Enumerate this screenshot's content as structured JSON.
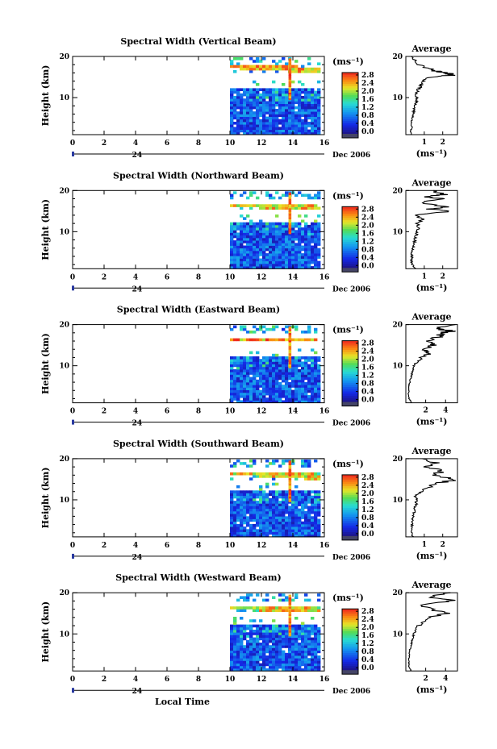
{
  "chart_data": [
    {
      "type": "heatmap",
      "title": "Spectral Width (Vertical Beam)",
      "ylabel": "Height (km)",
      "xlim": [
        0,
        16
      ],
      "ylim": [
        1,
        20
      ],
      "x_ticks": [
        "0",
        "2",
        "4",
        "6",
        "8",
        "10",
        "12",
        "14",
        "16"
      ],
      "y_ticks": [
        "10",
        "20"
      ],
      "date_day": "24",
      "date_label": "Dec 2006",
      "colorbar": {
        "unit": "(ms⁻¹)",
        "ticks": [
          "0.0",
          "0.4",
          "0.8",
          "1.2",
          "1.6",
          "2.0",
          "2.4",
          "2.8"
        ]
      },
      "average": {
        "title": "Average",
        "xlabel": "(ms⁻¹)",
        "x_ticks": [
          "1",
          "2"
        ],
        "xlim": [
          0,
          2.8
        ],
        "y_ticks": [
          "10",
          "20"
        ],
        "profile": [
          [
            1,
            0.3
          ],
          [
            2,
            0.25
          ],
          [
            3,
            0.35
          ],
          [
            4,
            0.3
          ],
          [
            5,
            0.35
          ],
          [
            6,
            0.4
          ],
          [
            7,
            0.45
          ],
          [
            8,
            0.5
          ],
          [
            9,
            0.55
          ],
          [
            10,
            0.6
          ],
          [
            11,
            0.55
          ],
          [
            12,
            0.7
          ],
          [
            13,
            0.8
          ],
          [
            14,
            0.95
          ],
          [
            15,
            1.4
          ],
          [
            15.5,
            2.6
          ],
          [
            16,
            2.2
          ],
          [
            16.5,
            1.6
          ],
          [
            17,
            1.3
          ],
          [
            18,
            0.7
          ],
          [
            19,
            0.5
          ],
          [
            20,
            0.3
          ]
        ]
      },
      "data_extent": {
        "start_hour": 10,
        "end_hour": 15.6
      },
      "bright_layer": {
        "start_height": 15.5,
        "end_height": 17.5,
        "value": 2.6
      },
      "vertical_spike": {
        "time": 13.8,
        "value": 2.8
      }
    },
    {
      "type": "heatmap",
      "title": "Spectral Width (Northward Beam)",
      "ylabel": "Height (km)",
      "xlim": [
        0,
        16
      ],
      "ylim": [
        1,
        20
      ],
      "x_ticks": [
        "0",
        "2",
        "4",
        "6",
        "8",
        "10",
        "12",
        "14",
        "16"
      ],
      "y_ticks": [
        "10",
        "20"
      ],
      "date_day": "24",
      "date_label": "Dec 2006",
      "colorbar": {
        "unit": "(ms⁻¹)",
        "ticks": [
          "0.0",
          "0.4",
          "0.8",
          "1.2",
          "1.6",
          "2.0",
          "2.4",
          "2.8"
        ]
      },
      "average": {
        "title": "Average",
        "xlabel": "(ms⁻¹)",
        "x_ticks": [
          "1",
          "2"
        ],
        "xlim": [
          0,
          2.8
        ],
        "y_ticks": [
          "10",
          "20"
        ],
        "profile": [
          [
            1,
            0.5
          ],
          [
            2,
            0.35
          ],
          [
            3,
            0.3
          ],
          [
            4,
            0.35
          ],
          [
            5,
            0.3
          ],
          [
            6,
            0.4
          ],
          [
            7,
            0.45
          ],
          [
            8,
            0.5
          ],
          [
            9,
            0.55
          ],
          [
            10,
            0.6
          ],
          [
            11,
            0.7
          ],
          [
            12,
            0.6
          ],
          [
            13,
            0.9
          ],
          [
            14,
            0.5
          ],
          [
            15,
            2.6
          ],
          [
            15.5,
            1.2
          ],
          [
            16,
            2.2
          ],
          [
            17,
            0.8
          ],
          [
            18,
            1.9
          ],
          [
            18.5,
            1.0
          ],
          [
            19,
            2.0
          ],
          [
            20,
            1.5
          ]
        ]
      },
      "data_extent": {
        "start_hour": 10,
        "end_hour": 15.6
      },
      "bright_layer": {
        "start_height": 15,
        "end_height": 16.5,
        "value": 2.5
      },
      "vertical_spike": {
        "time": 13.8,
        "value": 2.8
      }
    },
    {
      "type": "heatmap",
      "title": "Spectral Width (Eastward Beam)",
      "ylabel": "Height (km)",
      "xlim": [
        0,
        16
      ],
      "ylim": [
        1,
        20
      ],
      "x_ticks": [
        "0",
        "2",
        "4",
        "6",
        "8",
        "10",
        "12",
        "14",
        "16"
      ],
      "y_ticks": [
        "10",
        "20"
      ],
      "date_day": "24",
      "date_label": "Dec 2006",
      "colorbar": {
        "unit": "(ms⁻¹)",
        "ticks": [
          "0.0",
          "0.4",
          "0.8",
          "1.2",
          "1.6",
          "2.0",
          "2.4",
          "2.8"
        ]
      },
      "average": {
        "title": "Average",
        "xlabel": "(ms⁻¹)",
        "x_ticks": [
          "2",
          "4"
        ],
        "xlim": [
          0,
          5.2
        ],
        "y_ticks": [
          "10",
          "20"
        ],
        "profile": [
          [
            1,
            0.6
          ],
          [
            2,
            0.3
          ],
          [
            3,
            0.25
          ],
          [
            4,
            0.3
          ],
          [
            5,
            0.3
          ],
          [
            6,
            0.4
          ],
          [
            7,
            0.5
          ],
          [
            8,
            0.6
          ],
          [
            9,
            0.7
          ],
          [
            10,
            0.8
          ],
          [
            11,
            1.2
          ],
          [
            12,
            1.6
          ],
          [
            13,
            2.4
          ],
          [
            14,
            1.8
          ],
          [
            15,
            2.8
          ],
          [
            16,
            2.2
          ],
          [
            17,
            3.3
          ],
          [
            18,
            3.8
          ],
          [
            18.5,
            4.6
          ],
          [
            19,
            2.9
          ],
          [
            20,
            5.0
          ]
        ]
      },
      "data_extent": {
        "start_hour": 10,
        "end_hour": 15.6
      },
      "bright_layer": {
        "start_height": 15.5,
        "end_height": 16.5,
        "value": 2.7
      },
      "vertical_spike": {
        "time": 13.8,
        "value": 2.8
      }
    },
    {
      "type": "heatmap",
      "title": "Spectral Width (Southward Beam)",
      "ylabel": "Height (km)",
      "xlim": [
        0,
        16
      ],
      "ylim": [
        1,
        20
      ],
      "x_ticks": [
        "0",
        "2",
        "4",
        "6",
        "8",
        "10",
        "12",
        "14",
        "16"
      ],
      "y_ticks": [
        "10",
        "20"
      ],
      "date_day": "24",
      "date_label": "Dec 2006",
      "colorbar": {
        "unit": "(ms⁻¹)",
        "ticks": [
          "0.0",
          "0.4",
          "0.8",
          "1.2",
          "1.6",
          "2.0",
          "2.4",
          "2.8"
        ]
      },
      "average": {
        "title": "Average",
        "xlabel": "(ms⁻¹)",
        "x_ticks": [
          "1",
          "2"
        ],
        "xlim": [
          0,
          2.8
        ],
        "y_ticks": [
          "10",
          "20"
        ],
        "profile": [
          [
            1,
            0.4
          ],
          [
            2,
            0.3
          ],
          [
            3,
            0.3
          ],
          [
            4,
            0.35
          ],
          [
            5,
            0.35
          ],
          [
            6,
            0.4
          ],
          [
            7,
            0.45
          ],
          [
            8,
            0.5
          ],
          [
            9,
            0.55
          ],
          [
            10,
            0.6
          ],
          [
            11,
            0.5
          ],
          [
            12,
            0.8
          ],
          [
            13,
            1.2
          ],
          [
            14,
            1.7
          ],
          [
            15,
            2.7
          ],
          [
            16,
            1.5
          ],
          [
            17,
            2.0
          ],
          [
            18,
            1.1
          ],
          [
            19,
            1.6
          ],
          [
            20,
            0.9
          ]
        ]
      },
      "data_extent": {
        "start_hour": 10,
        "end_hour": 15.6
      },
      "bright_layer": {
        "start_height": 14.5,
        "end_height": 16.5,
        "value": 2.5
      },
      "vertical_spike": {
        "time": 13.8,
        "value": 2.8
      }
    },
    {
      "type": "heatmap",
      "title": "Spectral Width (Westward Beam)",
      "ylabel": "Height (km)",
      "xlabel": "Local Time",
      "xlim": [
        0,
        16
      ],
      "ylim": [
        1,
        20
      ],
      "x_ticks": [
        "0",
        "2",
        "4",
        "6",
        "8",
        "10",
        "12",
        "14",
        "16"
      ],
      "y_ticks": [
        "10",
        "20"
      ],
      "date_day": "24",
      "date_label": "Dec 2006",
      "colorbar": {
        "unit": "(ms⁻¹)",
        "ticks": [
          "0.0",
          "0.4",
          "0.8",
          "1.2",
          "1.6",
          "2.0",
          "2.4",
          "2.8"
        ]
      },
      "average": {
        "title": "Average",
        "xlabel": "(ms⁻¹)",
        "x_ticks": [
          "2",
          "4"
        ],
        "xlim": [
          0,
          5.2
        ],
        "y_ticks": [
          "10",
          "20"
        ],
        "profile": [
          [
            1,
            0.5
          ],
          [
            2,
            0.3
          ],
          [
            3,
            0.3
          ],
          [
            4,
            0.3
          ],
          [
            5,
            0.35
          ],
          [
            6,
            0.4
          ],
          [
            7,
            0.5
          ],
          [
            8,
            0.6
          ],
          [
            9,
            0.7
          ],
          [
            10,
            0.8
          ],
          [
            11,
            1.0
          ],
          [
            12,
            1.3
          ],
          [
            13,
            1.8
          ],
          [
            14,
            2.5
          ],
          [
            15,
            3.9
          ],
          [
            16,
            2.6
          ],
          [
            17,
            1.5
          ],
          [
            18,
            4.8
          ],
          [
            19,
            2.4
          ],
          [
            20,
            4.5
          ]
        ]
      },
      "data_extent": {
        "start_hour": 10,
        "end_hour": 15.6
      },
      "bright_layer": {
        "start_height": 15,
        "end_height": 16.5,
        "value": 2.5
      },
      "vertical_spike": {
        "time": 13.8,
        "value": 2.8
      }
    }
  ]
}
